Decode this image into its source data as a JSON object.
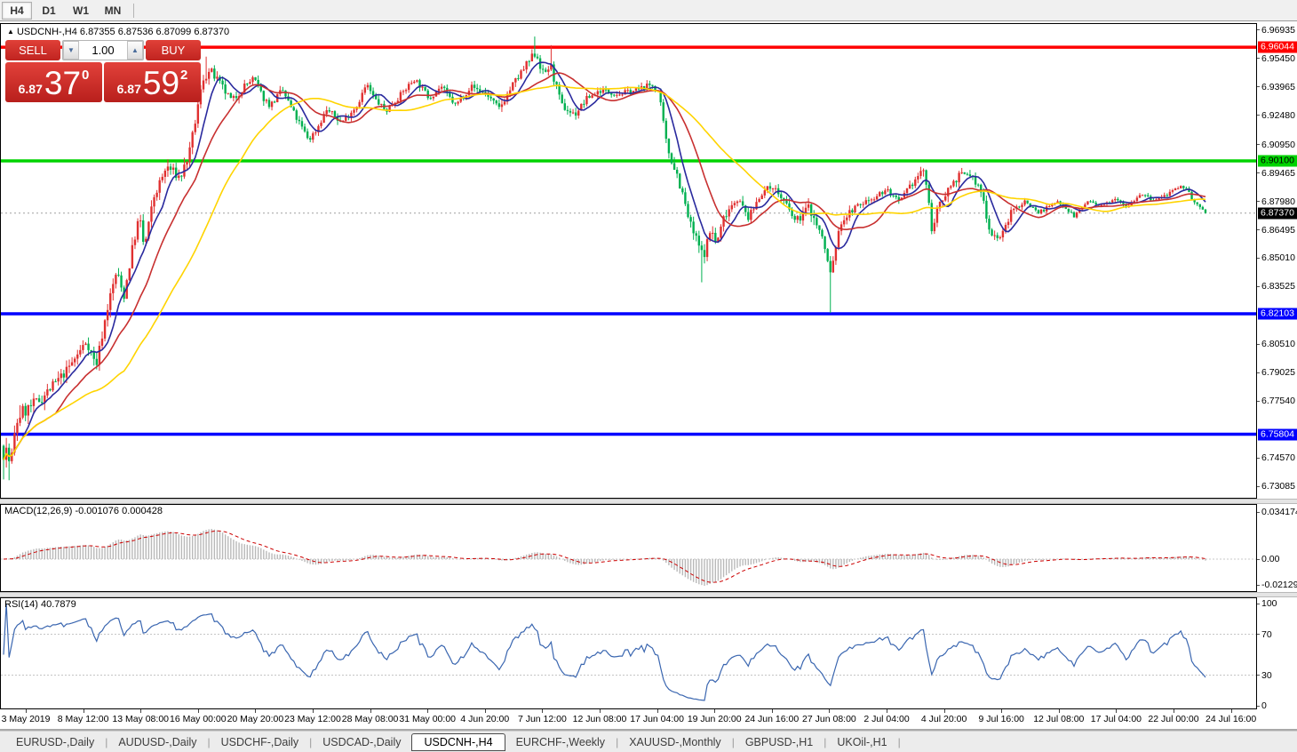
{
  "toolbar": {
    "buttons": [
      {
        "label": "H4",
        "active": true
      },
      {
        "label": "D1",
        "active": false
      },
      {
        "label": "W1",
        "active": false
      },
      {
        "label": "MN",
        "active": false
      }
    ]
  },
  "header": {
    "arrow": "▲",
    "symbol": "USDCNH-,H4",
    "ohlc_text": "6.87355 6.87536 6.87099 6.87370"
  },
  "trade_panel": {
    "sell_label": "SELL",
    "buy_label": "BUY",
    "volume": "1.00",
    "spinner_down": "▼",
    "spinner_up": "▲",
    "sell_price_small": "6.87",
    "sell_price_big": "37",
    "sell_price_sup": "0",
    "buy_price_small": "6.87",
    "buy_price_big": "59",
    "buy_price_sup": "2"
  },
  "chart_data": {
    "type": "candlestick",
    "symbol": "USDCNH-",
    "timeframe": "H4",
    "ohlc_current": {
      "open": 6.87355,
      "high": 6.87536,
      "low": 6.87099,
      "close": 6.8737
    },
    "price_axis": {
      "domain": [
        6.7253,
        6.9721
      ],
      "ticks": [
        "6.96935",
        "6.95450",
        "6.93965",
        "6.92480",
        "6.90950",
        "6.89465",
        "6.87980",
        "6.86495",
        "6.85010",
        "6.83525",
        "6.80510",
        "6.79025",
        "6.77540",
        "6.74570",
        "6.73085"
      ]
    },
    "levels": [
      {
        "price": 6.96044,
        "label": "6.96044",
        "color": "#ff0000",
        "label_bg": "#ff0000",
        "label_fg": "#ffffff"
      },
      {
        "price": 6.901,
        "label": "6.90100",
        "color": "#00d300",
        "label_bg": "#00d300",
        "label_fg": "#000000"
      },
      {
        "price": 6.82103,
        "label": "6.82103",
        "color": "#0000ff",
        "label_bg": "#0000ff",
        "label_fg": "#ffffff"
      },
      {
        "price": 6.75804,
        "label": "6.75804",
        "color": "#0000ff",
        "label_bg": "#0000ff",
        "label_fg": "#ffffff"
      }
    ],
    "current_price": {
      "value": 6.8737,
      "label": "6.87370",
      "bg": "#000000",
      "fg": "#ffffff",
      "line_color": "#a0a0a0"
    },
    "candles": {
      "count": 440,
      "seed": 7,
      "up_color": "#e03030",
      "down_color": "#00b050",
      "anchors": [
        [
          0.0,
          6.752
        ],
        [
          0.006,
          6.742
        ],
        [
          0.012,
          6.768
        ],
        [
          0.022,
          6.772
        ],
        [
          0.03,
          6.776
        ],
        [
          0.042,
          6.784
        ],
        [
          0.052,
          6.791
        ],
        [
          0.062,
          6.8
        ],
        [
          0.069,
          6.807
        ],
        [
          0.077,
          6.794
        ],
        [
          0.087,
          6.826
        ],
        [
          0.094,
          6.843
        ],
        [
          0.1,
          6.83
        ],
        [
          0.108,
          6.858
        ],
        [
          0.113,
          6.872
        ],
        [
          0.117,
          6.855
        ],
        [
          0.125,
          6.882
        ],
        [
          0.136,
          6.898
        ],
        [
          0.147,
          6.892
        ],
        [
          0.155,
          6.906
        ],
        [
          0.161,
          6.927
        ],
        [
          0.166,
          6.944
        ],
        [
          0.172,
          6.948
        ],
        [
          0.18,
          6.941
        ],
        [
          0.19,
          6.932
        ],
        [
          0.2,
          6.94
        ],
        [
          0.208,
          6.944
        ],
        [
          0.216,
          6.934
        ],
        [
          0.222,
          6.93
        ],
        [
          0.232,
          6.938
        ],
        [
          0.243,
          6.924
        ],
        [
          0.254,
          6.912
        ],
        [
          0.26,
          6.917
        ],
        [
          0.269,
          6.928
        ],
        [
          0.281,
          6.921
        ],
        [
          0.294,
          6.93
        ],
        [
          0.302,
          6.941
        ],
        [
          0.308,
          6.934
        ],
        [
          0.318,
          6.927
        ],
        [
          0.331,
          6.936
        ],
        [
          0.342,
          6.944
        ],
        [
          0.354,
          6.934
        ],
        [
          0.364,
          6.94
        ],
        [
          0.376,
          6.93
        ],
        [
          0.389,
          6.94
        ],
        [
          0.402,
          6.936
        ],
        [
          0.412,
          6.928
        ],
        [
          0.423,
          6.94
        ],
        [
          0.434,
          6.95
        ],
        [
          0.443,
          6.958
        ],
        [
          0.449,
          6.946
        ],
        [
          0.455,
          6.951
        ],
        [
          0.464,
          6.93
        ],
        [
          0.475,
          6.925
        ],
        [
          0.486,
          6.934
        ],
        [
          0.497,
          6.938
        ],
        [
          0.512,
          6.936
        ],
        [
          0.527,
          6.938
        ],
        [
          0.539,
          6.941
        ],
        [
          0.545,
          6.937
        ],
        [
          0.552,
          6.908
        ],
        [
          0.561,
          6.893
        ],
        [
          0.571,
          6.868
        ],
        [
          0.582,
          6.851
        ],
        [
          0.589,
          6.866
        ],
        [
          0.593,
          6.857
        ],
        [
          0.6,
          6.873
        ],
        [
          0.61,
          6.882
        ],
        [
          0.62,
          6.871
        ],
        [
          0.63,
          6.884
        ],
        [
          0.64,
          6.888
        ],
        [
          0.65,
          6.879
        ],
        [
          0.659,
          6.869
        ],
        [
          0.67,
          6.877
        ],
        [
          0.681,
          6.861
        ],
        [
          0.688,
          6.842
        ],
        [
          0.692,
          6.855
        ],
        [
          0.697,
          6.869
        ],
        [
          0.707,
          6.876
        ],
        [
          0.718,
          6.88
        ],
        [
          0.735,
          6.886
        ],
        [
          0.745,
          6.879
        ],
        [
          0.757,
          6.89
        ],
        [
          0.766,
          6.897
        ],
        [
          0.772,
          6.866
        ],
        [
          0.783,
          6.884
        ],
        [
          0.794,
          6.893
        ],
        [
          0.804,
          6.894
        ],
        [
          0.814,
          6.884
        ],
        [
          0.821,
          6.863
        ],
        [
          0.83,
          6.861
        ],
        [
          0.839,
          6.875
        ],
        [
          0.85,
          6.88
        ],
        [
          0.861,
          6.874
        ],
        [
          0.878,
          6.88
        ],
        [
          0.891,
          6.872
        ],
        [
          0.902,
          6.88
        ],
        [
          0.913,
          6.877
        ],
        [
          0.925,
          6.882
        ],
        [
          0.935,
          6.877
        ],
        [
          0.946,
          6.884
        ],
        [
          0.957,
          6.88
        ],
        [
          0.973,
          6.885
        ],
        [
          0.983,
          6.888
        ],
        [
          0.991,
          6.879
        ],
        [
          1.0,
          6.8737
        ]
      ],
      "vol_anchors": [
        [
          0,
          0.015
        ],
        [
          0.02,
          0.007
        ],
        [
          0.06,
          0.0045
        ],
        [
          0.1,
          0.006
        ],
        [
          0.17,
          0.005
        ],
        [
          0.22,
          0.0035
        ],
        [
          0.3,
          0.003
        ],
        [
          0.4,
          0.0032
        ],
        [
          0.445,
          0.005
        ],
        [
          0.5,
          0.0028
        ],
        [
          0.545,
          0.003
        ],
        [
          0.56,
          0.006
        ],
        [
          0.6,
          0.005
        ],
        [
          0.64,
          0.003
        ],
        [
          0.68,
          0.006
        ],
        [
          0.7,
          0.0035
        ],
        [
          0.75,
          0.0028
        ],
        [
          0.772,
          0.005
        ],
        [
          0.82,
          0.004
        ],
        [
          0.86,
          0.0022
        ],
        [
          0.92,
          0.0018
        ],
        [
          1.0,
          0.002
        ]
      ],
      "forced_extremes": [
        {
          "at": 0.004,
          "low": 6.734
        },
        {
          "at": 0.168,
          "high": 6.9555
        },
        {
          "at": 0.443,
          "high": 6.966
        },
        {
          "at": 0.455,
          "high": 6.9615
        },
        {
          "at": 0.582,
          "low": 6.8375
        },
        {
          "at": 0.688,
          "low": 6.8215
        }
      ]
    },
    "moving_averages": [
      {
        "type": "sma",
        "period": 8,
        "color": "#2a2a9e"
      },
      {
        "type": "sma",
        "period": 20,
        "color": "#c83030"
      },
      {
        "type": "sma",
        "period": 45,
        "color": "#ffd400"
      }
    ],
    "macd": {
      "label": "MACD(12,26,9) -0.001076 0.000428",
      "fast": 12,
      "slow": 26,
      "signal": 9,
      "value": -0.001076,
      "signal_value": 0.000428,
      "axis_ticks": [
        "0.034174",
        "0.00",
        "-0.021296"
      ],
      "bar_color": "#b9b9b9",
      "signal_color": "#cc0000",
      "zero_line_color": "#c8c8c8"
    },
    "rsi": {
      "label": "RSI(14) 40.7879",
      "period": 14,
      "value": 40.7879,
      "axis_ticks": [
        "100",
        "70",
        "30",
        "0"
      ],
      "levels": [
        70,
        30
      ],
      "line_color": "#3a66b0",
      "level_color": "#c5c5c5"
    },
    "time_axis": {
      "labels": [
        "3 May 2019",
        "8 May 12:00",
        "13 May 08:00",
        "16 May 00:00",
        "20 May 20:00",
        "23 May 12:00",
        "28 May 08:00",
        "31 May 00:00",
        "4 Jun 20:00",
        "7 Jun 12:00",
        "12 Jun 08:00",
        "17 Jun 04:00",
        "19 Jun 20:00",
        "24 Jun 16:00",
        "27 Jun 08:00",
        "2 Jul 04:00",
        "4 Jul 20:00",
        "9 Jul 16:00",
        "12 Jul 08:00",
        "17 Jul 04:00",
        "22 Jul 00:00",
        "24 Jul 16:00"
      ]
    }
  },
  "tabs": {
    "items": [
      {
        "label": "EURUSD-,Daily",
        "active": false
      },
      {
        "label": "AUDUSD-,Daily",
        "active": false
      },
      {
        "label": "USDCHF-,Daily",
        "active": false
      },
      {
        "label": "USDCAD-,Daily",
        "active": false
      },
      {
        "label": "USDCNH-,H4",
        "active": true
      },
      {
        "label": "EURCHF-,Weekly",
        "active": false
      },
      {
        "label": "XAUUSD-,Monthly",
        "active": false
      },
      {
        "label": "GBPUSD-,H1",
        "active": false
      },
      {
        "label": "UKOil-,H1",
        "active": false
      }
    ]
  }
}
